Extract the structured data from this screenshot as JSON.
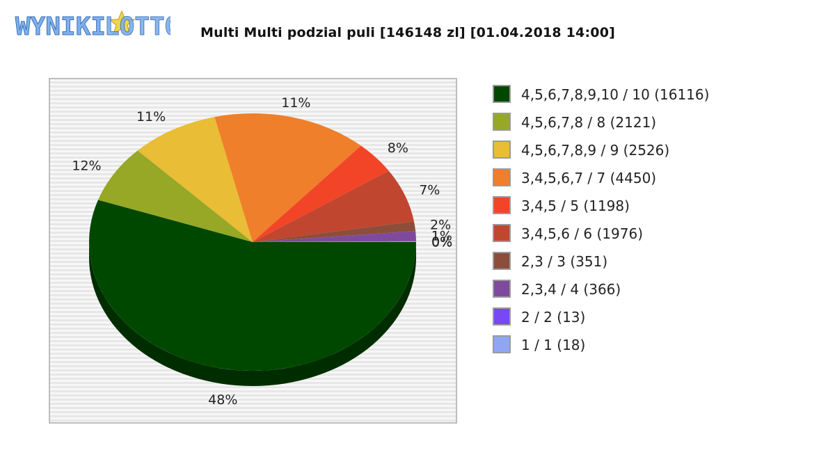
{
  "title": "Multi Multi podzial puli [146148 zl] [01.04.2018 14:00]",
  "logo": {
    "text_left": "WYNIKI",
    "text_right": "LOTTO",
    "colors": {
      "fill": "#6fa7e8",
      "star": "#f2d64a"
    }
  },
  "chart_data": {
    "type": "pie",
    "title": "Multi Multi podzial puli [146148 zl] [01.04.2018 14:00]",
    "legend_position": "right",
    "slices": [
      {
        "label": "4,5,6,7,8,9,10 / 10 (16116)",
        "value": 16116,
        "pct_label": "48%",
        "color": "#004800"
      },
      {
        "label": "4,5,6,7,8 / 8 (2121)",
        "value": 2121,
        "pct_label": "12%",
        "color": "#96a826"
      },
      {
        "label": "4,5,6,7,8,9 / 9 (2526)",
        "value": 2526,
        "pct_label": "11%",
        "color": "#e9bd35"
      },
      {
        "label": "3,4,5,6,7 / 7 (4450)",
        "value": 4450,
        "pct_label": "11%",
        "color": "#ef7f2a"
      },
      {
        "label": "3,4,5 / 5 (1198)",
        "value": 1198,
        "pct_label": "8%",
        "color": "#f24527"
      },
      {
        "label": "3,4,5,6 / 6 (1976)",
        "value": 1976,
        "pct_label": "7%",
        "color": "#c1462f"
      },
      {
        "label": "2,3 / 3 (351)",
        "value": 351,
        "pct_label": "2%",
        "color": "#8c4e3a"
      },
      {
        "label": "2,3,4 / 4 (366)",
        "value": 366,
        "pct_label": "1%",
        "color": "#7f4a9e"
      },
      {
        "label": "2 / 2 (13)",
        "value": 13,
        "pct_label": "0%",
        "color": "#7848f5"
      },
      {
        "label": "1 / 1 (18)",
        "value": 18,
        "pct_label": "0%",
        "color": "#8fa6f5"
      }
    ]
  }
}
